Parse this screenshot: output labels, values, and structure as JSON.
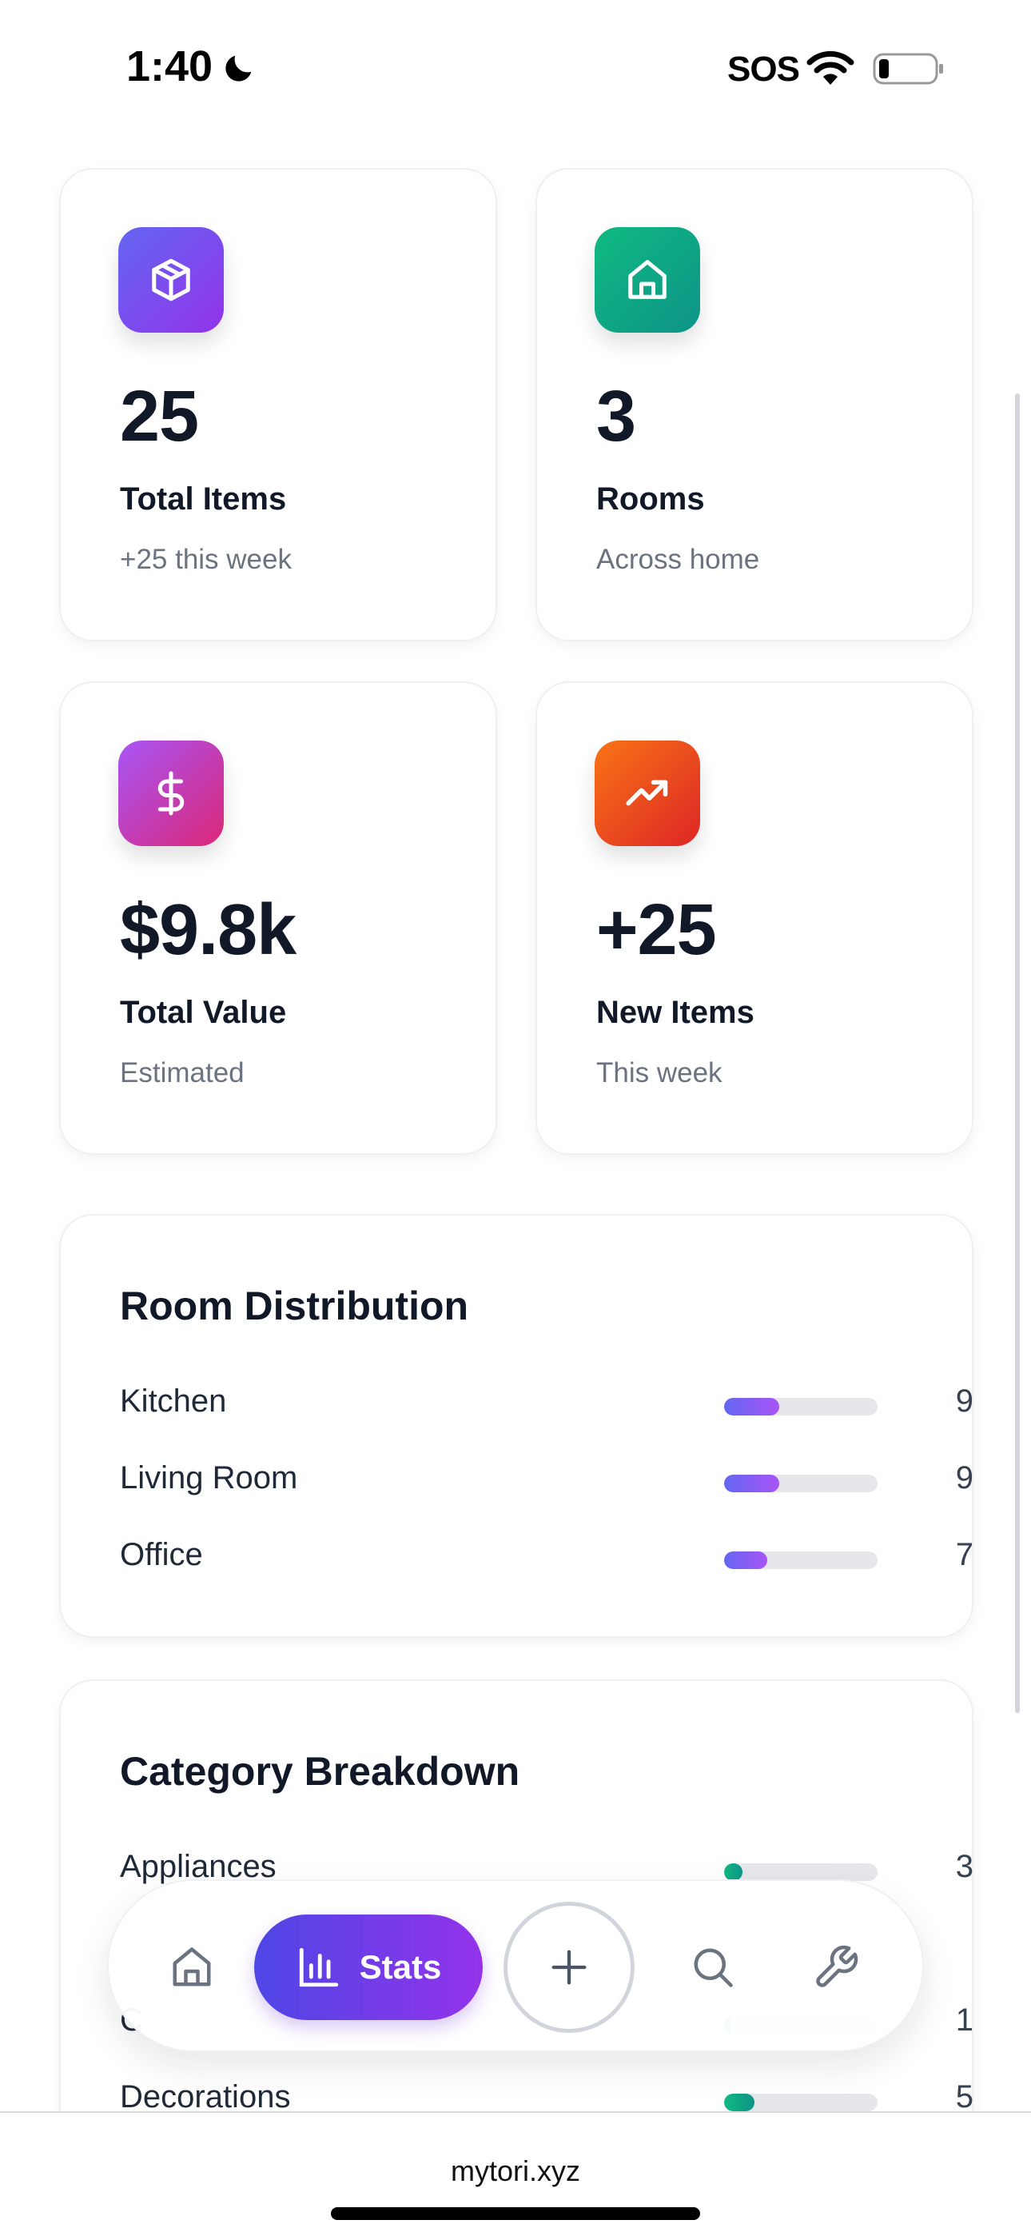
{
  "status_bar": {
    "time": "1:40",
    "sos": "SOS"
  },
  "stats": [
    {
      "value": "25",
      "label": "Total Items",
      "sub": "+25 this week",
      "icon": "box-icon",
      "gradient": [
        "#6366f1",
        "#9333ea"
      ]
    },
    {
      "value": "3",
      "label": "Rooms",
      "sub": "Across home",
      "icon": "home-icon",
      "gradient": [
        "#10b981",
        "#0d9488"
      ]
    },
    {
      "value": "$9.8k",
      "label": "Total Value",
      "sub": "Estimated",
      "icon": "dollar-icon",
      "gradient": [
        "#a855f7",
        "#db2777"
      ]
    },
    {
      "value": "+25",
      "label": "New Items",
      "sub": "This week",
      "icon": "trending-up-icon",
      "gradient": [
        "#f97316",
        "#dc2626"
      ]
    }
  ],
  "room_distribution": {
    "title": "Room Distribution",
    "accent": [
      "#6366f1",
      "#a855f7"
    ],
    "rows": [
      {
        "label": "Kitchen",
        "count": "9",
        "fraction": 0.36
      },
      {
        "label": "Living Room",
        "count": "9",
        "fraction": 0.36
      },
      {
        "label": "Office",
        "count": "7",
        "fraction": 0.28
      }
    ]
  },
  "category_breakdown": {
    "title": "Category Breakdown",
    "accent": [
      "#10b981",
      "#0d9488"
    ],
    "rows": [
      {
        "label": "Appliances",
        "count": "3",
        "fraction": 0.12
      },
      {
        "label": "C",
        "count": "1",
        "fraction": 0.04
      },
      {
        "label": "Decorations",
        "count": "5",
        "fraction": 0.2
      }
    ]
  },
  "nav": {
    "items": [
      "home-icon",
      "stats-icon",
      "plus-icon",
      "search-icon",
      "wrench-icon"
    ],
    "stats_label": "Stats",
    "active": "Stats"
  },
  "browser": {
    "url": "mytori.xyz"
  }
}
